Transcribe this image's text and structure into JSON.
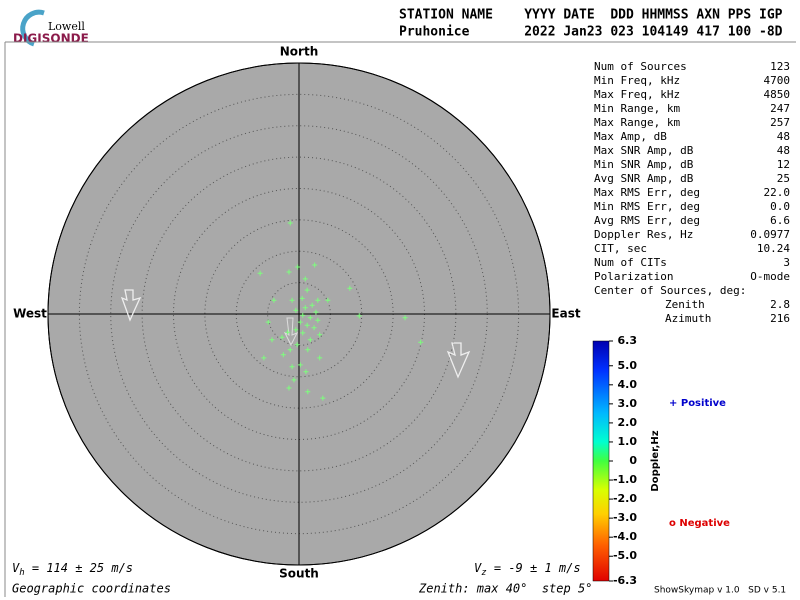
{
  "logo": {
    "top": "Lowell",
    "bottom": "DIGISONDE"
  },
  "header": {
    "line1": "STATION NAME    YYYY DATE  DDD HHMMSS AXN PPS IGP",
    "line2": "Pruhonice       2022 Jan23 023 104149 417 100 -8D"
  },
  "stats": [
    [
      "Num of Sources",
      "123"
    ],
    [
      "Min Freq, kHz",
      "4700"
    ],
    [
      "Max Freq, kHz",
      "4850"
    ],
    [
      "Min Range, km",
      "247"
    ],
    [
      "Max Range, km",
      "257"
    ],
    [
      "Max Amp, dB",
      "48"
    ],
    [
      "Max SNR Amp, dB",
      "48"
    ],
    [
      "Min SNR Amp, dB",
      "12"
    ],
    [
      "Avg SNR Amp, dB",
      "25"
    ],
    [
      "Max RMS Err, deg",
      "22.0"
    ],
    [
      "Min RMS Err, deg",
      "0.0"
    ],
    [
      "Avg RMS Err, deg",
      "6.6"
    ],
    [
      "Doppler Res, Hz",
      "0.0977"
    ],
    [
      "CIT, sec",
      "10.24"
    ],
    [
      "Num of CITs",
      "3"
    ],
    [
      "Polarization",
      "O-mode"
    ]
  ],
  "center": {
    "label": "Center of Sources, deg:",
    "rows": [
      [
        "Zenith",
        "2.8"
      ],
      [
        "Azimuth",
        "216"
      ]
    ]
  },
  "footer": {
    "vh": {
      "symbol": "V",
      "sub": "h",
      "text": " = 114 ± 25 m/s"
    },
    "vz": {
      "symbol": "V",
      "sub": "z",
      "text": " = -9 ± 1 m/s"
    },
    "coords": "Geographic coordinates",
    "zenith": "Zenith: max 40°  step 5°",
    "version": "ShowSkymap v 1.0   SD v 5.1"
  },
  "chart_data": {
    "type": "skymap",
    "compass": {
      "north": "North",
      "south": "South",
      "east": "East",
      "west": "West"
    },
    "rlim": [
      0,
      40
    ],
    "rticks": [
      5,
      10,
      15,
      20,
      25,
      30,
      35,
      40
    ],
    "color": "#7dff7d",
    "x": [
      -1.4,
      -0.2,
      2.5,
      -1.6,
      -6.2,
      1.0,
      8.1,
      -4.0,
      -1.1,
      1.3,
      3.0,
      4.6,
      1.0,
      2.1,
      2.7,
      0.6,
      1.8,
      3.0,
      0.2,
      1.3,
      2.4,
      -0.5,
      0.6,
      -1.8,
      9.6,
      16.9,
      -4.9,
      -2.7,
      1.8,
      3.3,
      -0.3,
      -1.4,
      1.4,
      -5.6,
      -2.5,
      3.3,
      0.2,
      -1.1,
      1.1,
      19.4,
      -0.8,
      -1.6,
      1.4,
      3.8,
      -4.3,
      0.5,
      -0.5
    ],
    "y": [
      14.5,
      7.5,
      7.8,
      6.7,
      6.5,
      5.6,
      4.1,
      2.2,
      2.2,
      3.8,
      2.2,
      2.2,
      1.0,
      1.4,
      0.3,
      -0.2,
      -0.6,
      -1.0,
      -1.3,
      -1.8,
      -2.2,
      -2.5,
      -3.0,
      -2.9,
      -0.3,
      -0.6,
      -1.3,
      -3.7,
      -4.1,
      -3.3,
      -4.9,
      -5.7,
      -5.7,
      -7.0,
      -6.5,
      -7.0,
      -8.1,
      -8.4,
      -9.2,
      -4.5,
      -10.5,
      -11.8,
      -12.4,
      -13.4,
      -4.1,
      2.5,
      0.6
    ],
    "colorbar": {
      "title": "Doppler,Hz",
      "clim": [
        -6.3,
        6.3
      ],
      "ticks": [
        6.3,
        {
          "value": 5,
          "label": "5.0"
        },
        {
          "value": 4,
          "label": "4.0"
        },
        {
          "value": 3,
          "label": "3.0"
        },
        {
          "value": 2,
          "label": "2.0"
        },
        {
          "value": 1,
          "label": "1.0"
        },
        0,
        {
          "value": -1,
          "label": "-1.0"
        },
        {
          "value": -2,
          "label": "-2.0"
        },
        {
          "value": -3,
          "label": "-3.0"
        },
        {
          "value": -4,
          "label": "-4.0"
        },
        {
          "value": -5,
          "label": "-5.0"
        },
        -6.3
      ]
    },
    "legend": [
      {
        "name": "+ Positive",
        "color": "#0000cc"
      },
      {
        "name": "o Negative",
        "color": "#dd0000"
      }
    ]
  }
}
